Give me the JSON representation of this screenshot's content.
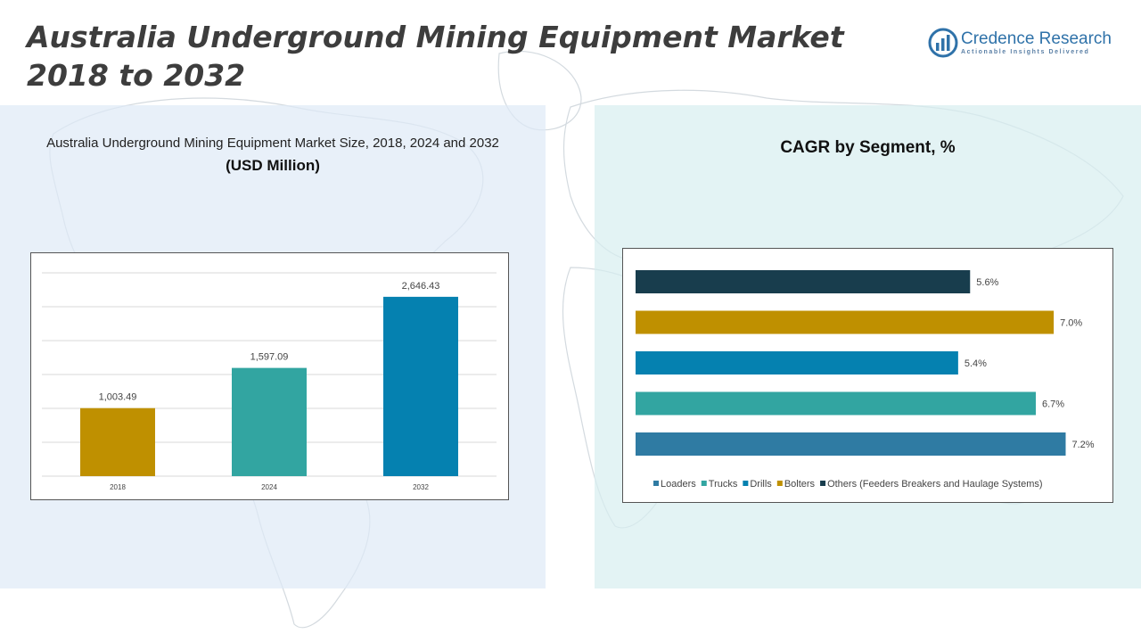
{
  "title": "Australia Underground Mining Equipment Market 2018 to 2032",
  "logo": {
    "name": "Credence Research",
    "tagline": "Actionable Insights Delivered"
  },
  "left_panel": {
    "subtitle": "Australia Underground Mining Equipment Market Size, 2018, 2024 and 2032",
    "unit": "(USD Million)"
  },
  "right_panel": {
    "title": "CAGR by Segment, %"
  },
  "colors": {
    "gold": "#bf9000",
    "teal": "#32a5a1",
    "blue": "#0581b0",
    "steel": "#2f7ba3",
    "navy": "#183d4d"
  },
  "chart_data": [
    {
      "type": "bar",
      "categories": [
        "2018",
        "2024",
        "2032"
      ],
      "values": [
        1003.49,
        1597.09,
        2646.43
      ],
      "value_labels": [
        "1,003.49",
        "1,597.09",
        "2,646.43"
      ],
      "bar_colors": [
        "#bf9000",
        "#32a5a1",
        "#0581b0"
      ],
      "ylim": [
        0,
        3000
      ],
      "grid": true,
      "legend": "none"
    },
    {
      "type": "bar",
      "orientation": "horizontal",
      "categories": [
        "Loaders",
        "Trucks",
        "Drills",
        "Bolters",
        "Others (Feeders Breakers and Haulage Systems)"
      ],
      "values": [
        7.2,
        6.7,
        5.4,
        7.0,
        5.6
      ],
      "value_labels": [
        "7.2%",
        "6.7%",
        "5.4%",
        "7.0%",
        "5.6%"
      ],
      "bar_colors": [
        "#2f7ba3",
        "#32a5a1",
        "#0581b0",
        "#bf9000",
        "#183d4d"
      ],
      "xlim": [
        0,
        7.7
      ],
      "grid": false,
      "legend": "bottom"
    }
  ]
}
